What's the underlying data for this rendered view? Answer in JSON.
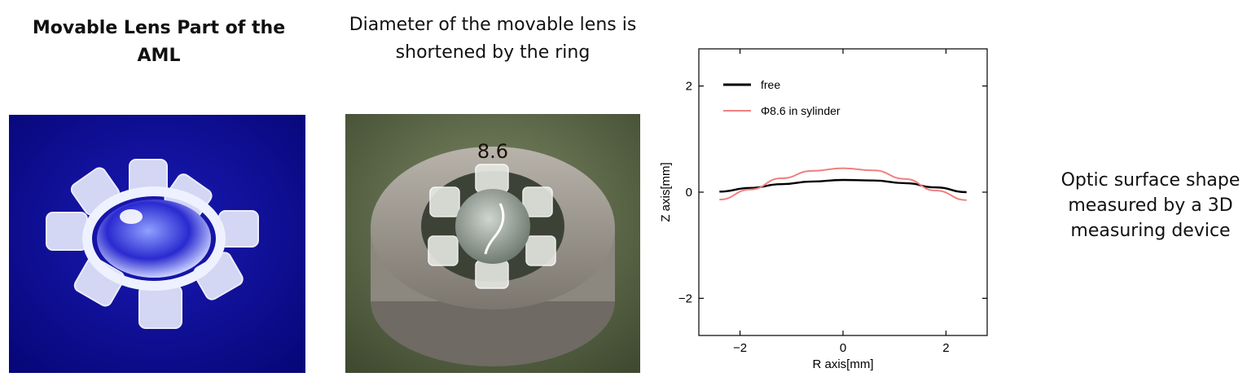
{
  "captions": {
    "left": "Movable Lens Part of the AML",
    "middle": "Diameter of the movable lens is shortened by the ring",
    "right": "Optic surface shape measured by a 3D measuring device"
  },
  "photos": {
    "ring_label": "8.6",
    "left_background": "#0d0d98",
    "middle_background": "#5d6a4a"
  },
  "chart_data": {
    "type": "line",
    "xlabel": "R axis[mm]",
    "ylabel": "Z axis[mm]",
    "xlim": [
      -2.8,
      2.8
    ],
    "ylim": [
      -2.7,
      2.7
    ],
    "xticks": [
      -2,
      0,
      2
    ],
    "yticks": [
      -2,
      0,
      2
    ],
    "grid": false,
    "legend_position": "top-left",
    "series": [
      {
        "name": "free",
        "color": "#000000",
        "x": [
          -2.4,
          -1.8,
          -1.2,
          -0.6,
          0,
          0.6,
          1.2,
          1.8,
          2.4
        ],
        "y": [
          0.01,
          0.08,
          0.15,
          0.2,
          0.23,
          0.22,
          0.17,
          0.09,
          0.0
        ]
      },
      {
        "name": "Φ8.6 in sylinder",
        "color": "#f08080",
        "x": [
          -2.4,
          -1.8,
          -1.2,
          -0.6,
          0,
          0.6,
          1.2,
          1.8,
          2.4
        ],
        "y": [
          -0.14,
          0.05,
          0.26,
          0.4,
          0.45,
          0.41,
          0.25,
          0.03,
          -0.15
        ]
      }
    ]
  }
}
